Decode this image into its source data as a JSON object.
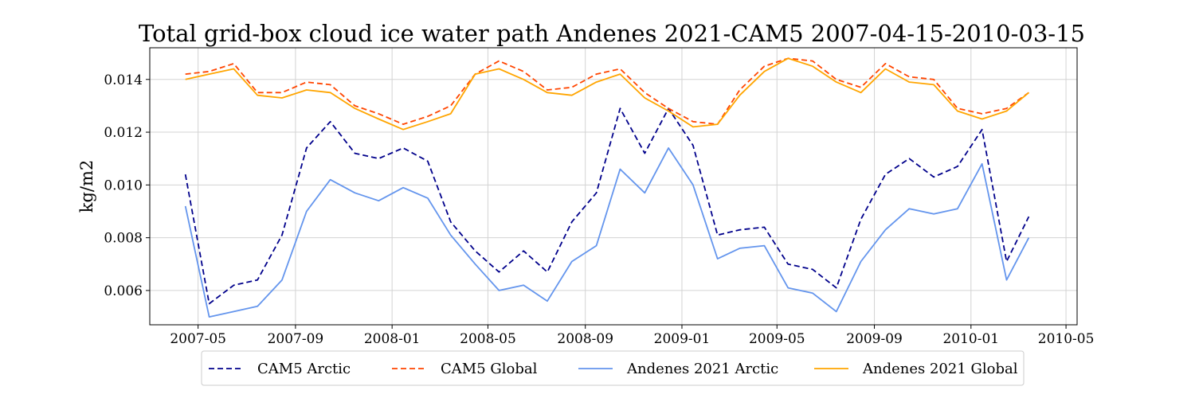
{
  "chart_data": {
    "type": "line",
    "title": "Total grid-box cloud ice water path Andenes 2021-CAM5 2007-04-15-2010-03-15",
    "xlabel": "",
    "ylabel": "kg/m2",
    "x": [
      "2007-04-15",
      "2007-05-15",
      "2007-06-15",
      "2007-07-15",
      "2007-08-15",
      "2007-09-15",
      "2007-10-15",
      "2007-11-15",
      "2007-12-15",
      "2008-01-15",
      "2008-02-15",
      "2008-03-15",
      "2008-04-15",
      "2008-05-15",
      "2008-06-15",
      "2008-07-15",
      "2008-08-15",
      "2008-09-15",
      "2008-10-15",
      "2008-11-15",
      "2008-12-15",
      "2009-01-15",
      "2009-02-15",
      "2009-03-15",
      "2009-04-15",
      "2009-05-15",
      "2009-06-15",
      "2009-07-15",
      "2009-08-15",
      "2009-09-15",
      "2009-10-15",
      "2009-11-15",
      "2009-12-15",
      "2010-01-15",
      "2010-02-15",
      "2010-03-15"
    ],
    "xlim": [
      "2007-03-01",
      "2010-05-15"
    ],
    "ylim": [
      0.0047,
      0.0152
    ],
    "x_ticks": [
      "2007-05",
      "2007-09",
      "2008-01",
      "2008-05",
      "2008-09",
      "2009-01",
      "2009-05",
      "2009-09",
      "2010-01",
      "2010-05"
    ],
    "y_ticks": [
      "0.006",
      "0.008",
      "0.010",
      "0.012",
      "0.014"
    ],
    "grid": true,
    "legend_position": "bottom-center",
    "series": [
      {
        "name": "CAM5 Arctic",
        "color": "#00008b",
        "style": "dashed",
        "values": [
          0.0104,
          0.0055,
          0.0062,
          0.0064,
          0.0081,
          0.0114,
          0.0124,
          0.0112,
          0.011,
          0.0114,
          0.0109,
          0.0086,
          0.0075,
          0.0067,
          0.0075,
          0.0067,
          0.0086,
          0.0097,
          0.0129,
          0.0112,
          0.0129,
          0.0115,
          0.0081,
          0.0083,
          0.0084,
          0.007,
          0.0068,
          0.0061,
          0.0087,
          0.0104,
          0.011,
          0.0103,
          0.0107,
          0.0121,
          0.0071,
          0.0088
        ]
      },
      {
        "name": "CAM5 Global",
        "color": "#ff4500",
        "style": "dashed",
        "values": [
          0.0142,
          0.0143,
          0.0146,
          0.0135,
          0.0135,
          0.0139,
          0.0138,
          0.013,
          0.0127,
          0.0123,
          0.0126,
          0.013,
          0.0142,
          0.0147,
          0.0143,
          0.0136,
          0.0137,
          0.0142,
          0.0144,
          0.0135,
          0.0129,
          0.0124,
          0.0123,
          0.0136,
          0.0145,
          0.0148,
          0.0147,
          0.014,
          0.0137,
          0.0146,
          0.0141,
          0.014,
          0.0129,
          0.0127,
          0.0129,
          0.0135
        ]
      },
      {
        "name": "Andenes 2021 Arctic",
        "color": "#6495ed",
        "style": "solid",
        "values": [
          0.0092,
          0.005,
          0.0052,
          0.0054,
          0.0064,
          0.009,
          0.0102,
          0.0097,
          0.0094,
          0.0099,
          0.0095,
          0.0081,
          0.007,
          0.006,
          0.0062,
          0.0056,
          0.0071,
          0.0077,
          0.0106,
          0.0097,
          0.0114,
          0.01,
          0.0072,
          0.0076,
          0.0077,
          0.0061,
          0.0059,
          0.0052,
          0.0071,
          0.0083,
          0.0091,
          0.0089,
          0.0091,
          0.0108,
          0.0064,
          0.008
        ]
      },
      {
        "name": "Andenes 2021 Global",
        "color": "#ffa500",
        "style": "solid",
        "values": [
          0.014,
          0.0142,
          0.0144,
          0.0134,
          0.0133,
          0.0136,
          0.0135,
          0.0129,
          0.0125,
          0.0121,
          0.0124,
          0.0127,
          0.0142,
          0.0144,
          0.014,
          0.0135,
          0.0134,
          0.0139,
          0.0142,
          0.0133,
          0.0128,
          0.0122,
          0.0123,
          0.0134,
          0.0143,
          0.0148,
          0.0145,
          0.0139,
          0.0135,
          0.0144,
          0.0139,
          0.0138,
          0.0128,
          0.0125,
          0.0128,
          0.0135
        ]
      }
    ]
  }
}
